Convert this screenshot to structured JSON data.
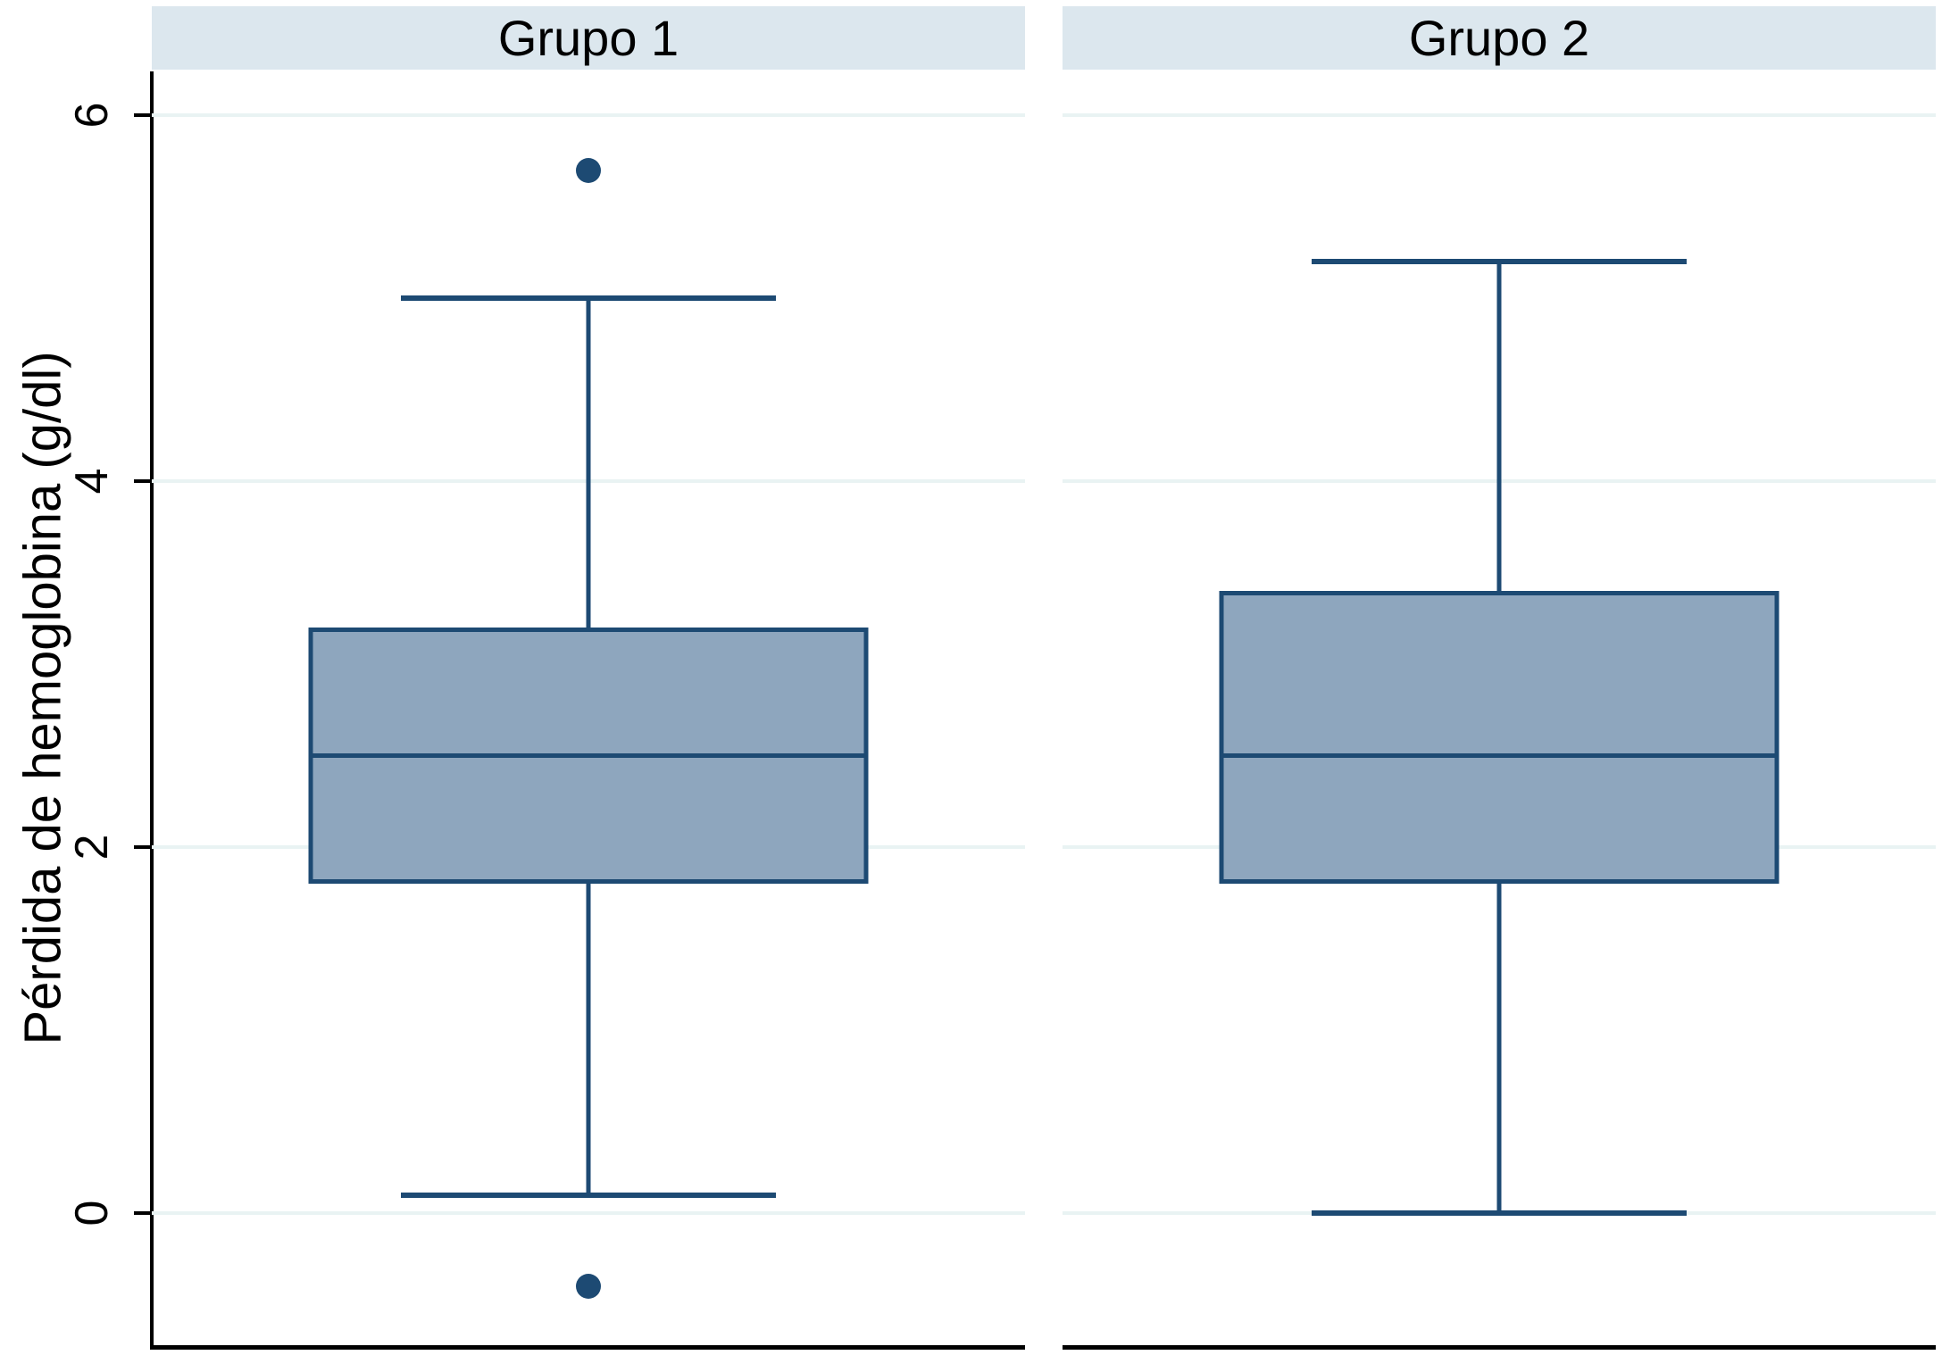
{
  "chart_data": {
    "type": "boxplot",
    "title": "",
    "xlabel": "",
    "ylabel": "Pérdida de hemoglobina (g/dl)",
    "yticks": [
      6,
      4,
      2,
      0
    ],
    "ylim": [
      -0.75,
      6.25
    ],
    "grid": true,
    "legend": "none",
    "panels": [
      {
        "label": "Grupo 1",
        "stats": {
          "whisker_low": 0.1,
          "q1": 1.8,
          "median": 2.5,
          "q3": 3.2,
          "whisker_high": 5.0
        },
        "outliers": [
          5.7,
          -0.4
        ]
      },
      {
        "label": "Grupo 2",
        "stats": {
          "whisker_low": 0.0,
          "q1": 1.8,
          "median": 2.5,
          "q3": 3.4,
          "whisker_high": 5.2
        },
        "outliers": []
      }
    ]
  },
  "colors": {
    "box_fill": "#8ea6be",
    "box_stroke": "#1d4a73",
    "outlier": "#1d4a73",
    "title_band": "#dce7ee",
    "gridline": "#e9f3f3",
    "axis": "#000000"
  }
}
